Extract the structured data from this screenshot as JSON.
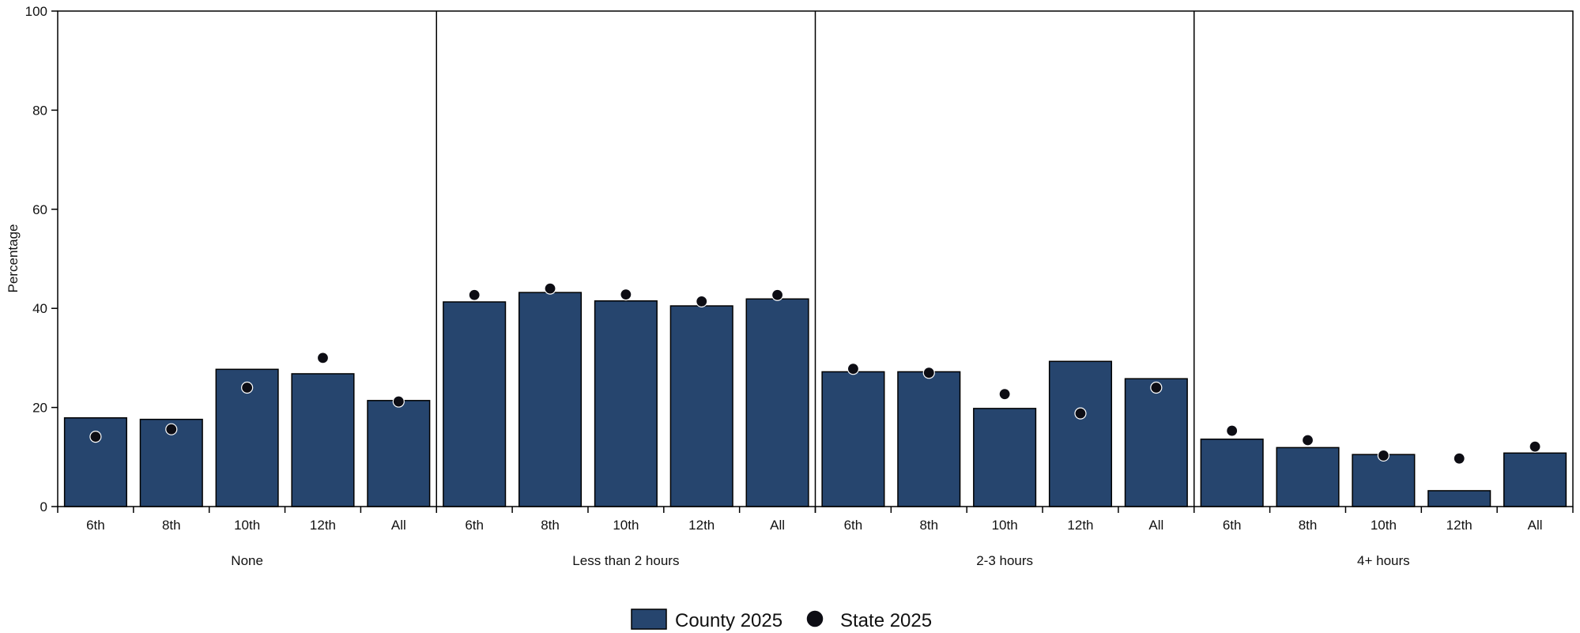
{
  "chart_data": {
    "type": "bar",
    "ylabel": "Percentage",
    "ylim": [
      0,
      100
    ],
    "yticks": [
      0,
      20,
      40,
      60,
      80,
      100
    ],
    "grid": false,
    "legend_position": "bottom-center",
    "groups": [
      "None",
      "Less than 2 hours",
      "2-3 hours",
      "4+ hours"
    ],
    "categories": [
      "6th",
      "8th",
      "10th",
      "12th",
      "All"
    ],
    "series": [
      {
        "name": "County 2025",
        "mark": "bar",
        "color": "#26456e",
        "values": [
          [
            17.9,
            17.6,
            27.7,
            26.8,
            21.4
          ],
          [
            41.3,
            43.2,
            41.5,
            40.5,
            41.9
          ],
          [
            27.2,
            27.2,
            19.8,
            29.3,
            25.8
          ],
          [
            13.6,
            11.9,
            10.5,
            3.2,
            10.8
          ]
        ]
      },
      {
        "name": "State 2025",
        "mark": "dot",
        "color": "#0d0d14",
        "values": [
          [
            14.1,
            15.6,
            24.0,
            30.0,
            21.2
          ],
          [
            42.7,
            44.0,
            42.8,
            41.4,
            42.7
          ],
          [
            27.8,
            27.0,
            22.7,
            18.8,
            24.0
          ],
          [
            15.3,
            13.4,
            10.3,
            9.7,
            12.1
          ]
        ]
      }
    ]
  }
}
